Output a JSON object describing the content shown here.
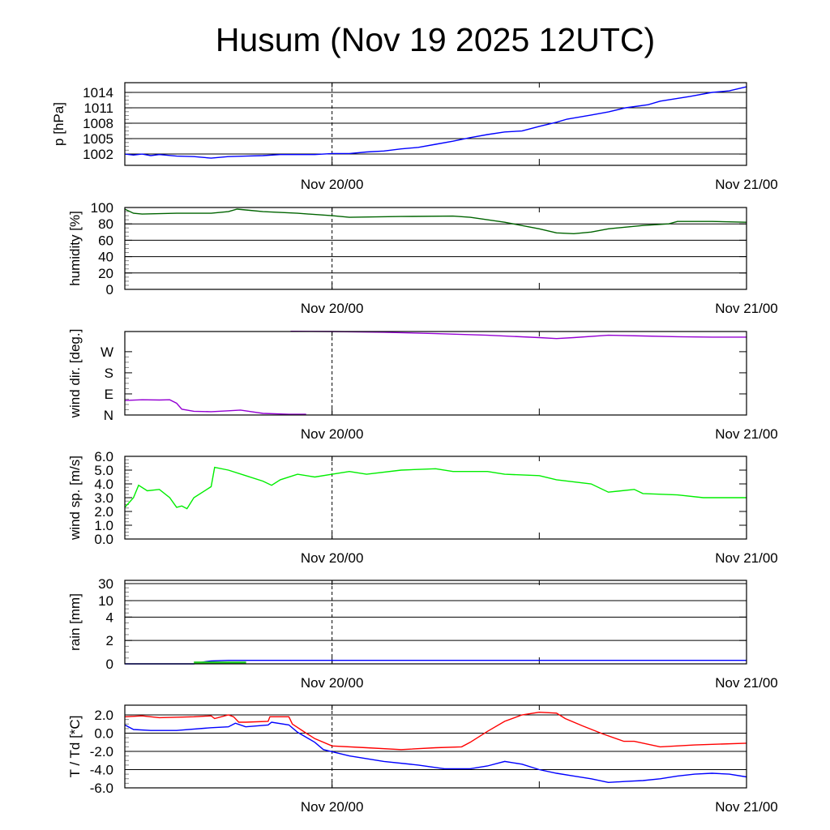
{
  "title": "Husum (Nov 19 2025 12UTC)",
  "chart_data": [
    {
      "type": "line",
      "ylabel": "p [hPa]",
      "ylim": [
        999.8,
        1015.9
      ],
      "yticks": [
        1002,
        1005,
        1008,
        1011,
        1014
      ],
      "ytick_labels": [
        "1002",
        "1005",
        "1008",
        "1011",
        "1014"
      ],
      "grid": true,
      "series": [
        {
          "name": "pressure",
          "color": "#0000ff",
          "x": [
            0,
            0.5,
            1,
            1.5,
            2,
            3,
            4,
            5,
            6,
            7,
            8,
            9,
            10,
            11,
            12,
            13,
            14,
            15,
            16,
            17,
            18,
            19,
            20,
            21,
            22,
            23,
            24,
            25,
            25.6,
            27,
            28,
            29,
            30.3,
            31,
            32.7,
            34,
            35,
            36
          ],
          "y": [
            1002.0,
            1001.8,
            1002.0,
            1001.7,
            1001.9,
            1001.6,
            1001.5,
            1001.2,
            1001.5,
            1001.6,
            1001.7,
            1001.9,
            1001.9,
            1001.9,
            1002.1,
            1002.1,
            1002.4,
            1002.6,
            1003.0,
            1003.3,
            1003.9,
            1004.5,
            1005.2,
            1005.8,
            1006.3,
            1006.5,
            1007.4,
            1008.2,
            1008.8,
            1009.6,
            1010.2,
            1011.0,
            1011.6,
            1012.3,
            1013.2,
            1014.0,
            1014.3,
            1015.1
          ]
        }
      ]
    },
    {
      "type": "line",
      "ylabel": "humidity [%]",
      "ylim": [
        0,
        100
      ],
      "yticks": [
        0,
        20,
        40,
        60,
        80,
        100
      ],
      "ytick_labels": [
        "0",
        "20",
        "40",
        "60",
        "80",
        "100"
      ],
      "grid": true,
      "series": [
        {
          "name": "humidity",
          "color": "#006400",
          "x": [
            0,
            0.5,
            1,
            3,
            5,
            6,
            6.5,
            7,
            8,
            10,
            12,
            13,
            16,
            19,
            20,
            22,
            24,
            25,
            26,
            27,
            28,
            30,
            31.5,
            32,
            34,
            36
          ],
          "y": [
            98,
            93,
            92,
            93,
            93,
            95,
            98,
            97,
            95,
            93,
            90,
            88,
            89,
            89.5,
            88,
            82,
            74,
            69,
            68,
            70,
            74,
            78,
            80,
            83,
            83,
            82
          ]
        }
      ]
    },
    {
      "type": "line",
      "ylabel": "wind dir. [deg.]",
      "ylim": [
        0,
        356
      ],
      "yticks": [
        0,
        90,
        180,
        270
      ],
      "ytick_labels": [
        "N",
        "E",
        "S",
        "W"
      ],
      "grid": false,
      "series": [
        {
          "name": "wind direction",
          "color": "#9400d3",
          "x": [
            0,
            1,
            2,
            2.6,
            3,
            3.3,
            4,
            5,
            6,
            6.7,
            8,
            9.5,
            10.5,
            null,
            9.6,
            12,
            15,
            18,
            21,
            24,
            25,
            26,
            28,
            30,
            32,
            34,
            36
          ],
          "y": [
            62,
            65,
            64,
            65,
            50,
            25,
            16,
            14,
            18,
            21,
            7,
            3,
            3,
            null,
            357,
            356,
            353,
            347,
            340,
            330,
            326,
            330,
            340,
            337,
            334,
            332,
            332
          ]
        }
      ]
    },
    {
      "type": "line",
      "ylabel": "wind sp. [m/s]",
      "ylim": [
        0,
        6.0
      ],
      "yticks": [
        0,
        1,
        2,
        3,
        4,
        5,
        6
      ],
      "ytick_labels": [
        "0.0",
        "1.0",
        "2.0",
        "3.0",
        "4.0",
        "5.0",
        "6.0"
      ],
      "grid": false,
      "series": [
        {
          "name": "wind speed",
          "color": "#00ee00",
          "x": [
            0,
            0.5,
            0.8,
            1.3,
            2,
            2.6,
            3,
            3.3,
            3.6,
            4,
            5,
            5.2,
            6,
            7,
            8,
            8.5,
            9,
            10,
            11,
            12,
            13,
            14,
            16,
            18,
            19,
            21,
            22,
            24,
            25,
            27,
            28,
            29.5,
            30,
            32,
            33.5,
            35,
            36
          ],
          "y": [
            2.3,
            3.0,
            3.9,
            3.5,
            3.6,
            3.0,
            2.3,
            2.4,
            2.2,
            3.0,
            3.8,
            5.2,
            5.0,
            4.6,
            4.2,
            3.9,
            4.3,
            4.7,
            4.5,
            4.7,
            4.9,
            4.7,
            5.0,
            5.1,
            4.9,
            4.9,
            4.7,
            4.6,
            4.3,
            4.0,
            3.4,
            3.6,
            3.3,
            3.2,
            3.0,
            3.0,
            3.0
          ]
        }
      ]
    },
    {
      "type": "line",
      "ylabel": "rain [mm]",
      "yscale": "nonlinear",
      "yticks": [
        0,
        2,
        4,
        10,
        30
      ],
      "ytick_labels": [
        "0",
        "2",
        "4",
        "10",
        "30"
      ],
      "grid": true,
      "series": [
        {
          "name": "accumulated rain",
          "color": "#0000ff",
          "x": [
            0,
            4,
            4.5,
            5,
            6,
            36
          ],
          "y": [
            0,
            0,
            0.15,
            0.25,
            0.3,
            0.3
          ]
        },
        {
          "name": "hourly rain",
          "color": "#22cc22",
          "type": "bar",
          "x": [
            4.5,
            5.5,
            6.5
          ],
          "y": [
            0.2,
            0.2,
            0.2
          ]
        }
      ]
    },
    {
      "type": "line",
      "ylabel": "T / Td [*C]",
      "ylim": [
        -6.0,
        3.07
      ],
      "yticks": [
        -6,
        -4,
        -2,
        0,
        2
      ],
      "ytick_labels": [
        "-6.0",
        "-4.0",
        "-2.0",
        "0.0",
        "2.0"
      ],
      "grid": true,
      "series": [
        {
          "name": "T",
          "color": "#ff0000",
          "x": [
            0,
            1,
            2,
            4,
            5,
            5.2,
            6,
            6.3,
            6.6,
            7,
            8.3,
            8.4,
            9.5,
            9.7,
            10.5,
            11,
            12,
            14,
            16,
            18,
            19.5,
            20,
            21,
            22,
            23,
            24,
            25,
            25.5,
            26.5,
            27.7,
            28.9,
            29.5,
            31,
            33,
            36
          ],
          "y": [
            1.8,
            1.9,
            1.7,
            1.8,
            1.9,
            1.6,
            2.0,
            1.8,
            1.2,
            1.2,
            1.3,
            1.8,
            1.8,
            1.0,
            0.0,
            -0.6,
            -1.4,
            -1.6,
            -1.8,
            -1.6,
            -1.5,
            -1.0,
            0.2,
            1.3,
            2.0,
            2.3,
            2.2,
            1.6,
            0.8,
            -0.1,
            -0.9,
            -0.9,
            -1.5,
            -1.3,
            -1.1
          ]
        },
        {
          "name": "Td",
          "color": "#0000ff",
          "x": [
            0,
            0.5,
            1.5,
            3,
            5,
            6,
            6.4,
            7,
            8.3,
            8.5,
            9.5,
            10,
            11,
            11.5,
            13,
            15,
            17,
            18.5,
            20,
            21,
            22,
            23,
            24,
            25,
            26,
            27,
            28,
            29,
            30,
            31,
            32,
            33,
            34,
            35,
            36
          ],
          "y": [
            0.9,
            0.4,
            0.3,
            0.3,
            0.6,
            0.7,
            1.1,
            0.7,
            0.9,
            1.2,
            0.9,
            0.1,
            -1.0,
            -1.8,
            -2.5,
            -3.1,
            -3.5,
            -3.9,
            -3.9,
            -3.6,
            -3.1,
            -3.4,
            -4.0,
            -4.4,
            -4.7,
            -5.0,
            -5.4,
            -5.3,
            -5.2,
            -5.0,
            -4.7,
            -4.5,
            -4.4,
            -4.5,
            -4.8
          ]
        }
      ]
    }
  ],
  "x_axis": {
    "start": "Nov 19 12UTC",
    "hours": 36,
    "major_ticks_hours": [
      12,
      36
    ],
    "major_tick_labels": [
      "Nov 20/00",
      "Nov 21/00"
    ],
    "minor_tick_hours": [
      24
    ],
    "dashed_marker_hour": 12
  }
}
